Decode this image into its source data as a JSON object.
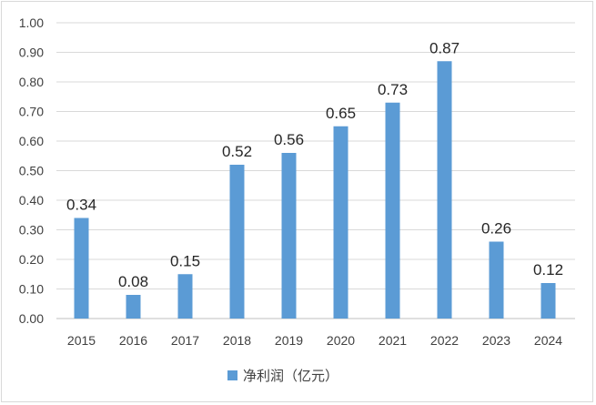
{
  "chart_data": {
    "type": "bar",
    "categories": [
      "2015",
      "2016",
      "2017",
      "2018",
      "2019",
      "2020",
      "2021",
      "2022",
      "2023",
      "2024"
    ],
    "series": [
      {
        "name": "净利润（亿元）",
        "values": [
          0.34,
          0.08,
          0.15,
          0.52,
          0.56,
          0.65,
          0.73,
          0.87,
          0.26,
          0.12
        ],
        "color": "#5b9bd5"
      }
    ],
    "data_labels": [
      "0.34",
      "0.08",
      "0.15",
      "0.52",
      "0.56",
      "0.65",
      "0.73",
      "0.87",
      "0.26",
      "0.12"
    ],
    "yticks": [
      "0.00",
      "0.10",
      "0.20",
      "0.30",
      "0.40",
      "0.50",
      "0.60",
      "0.70",
      "0.80",
      "0.90",
      "1.00"
    ],
    "ylim": [
      0,
      1.0
    ],
    "grid": true,
    "legend_position": "bottom"
  },
  "legend": {
    "label": "净利润（亿元）"
  }
}
